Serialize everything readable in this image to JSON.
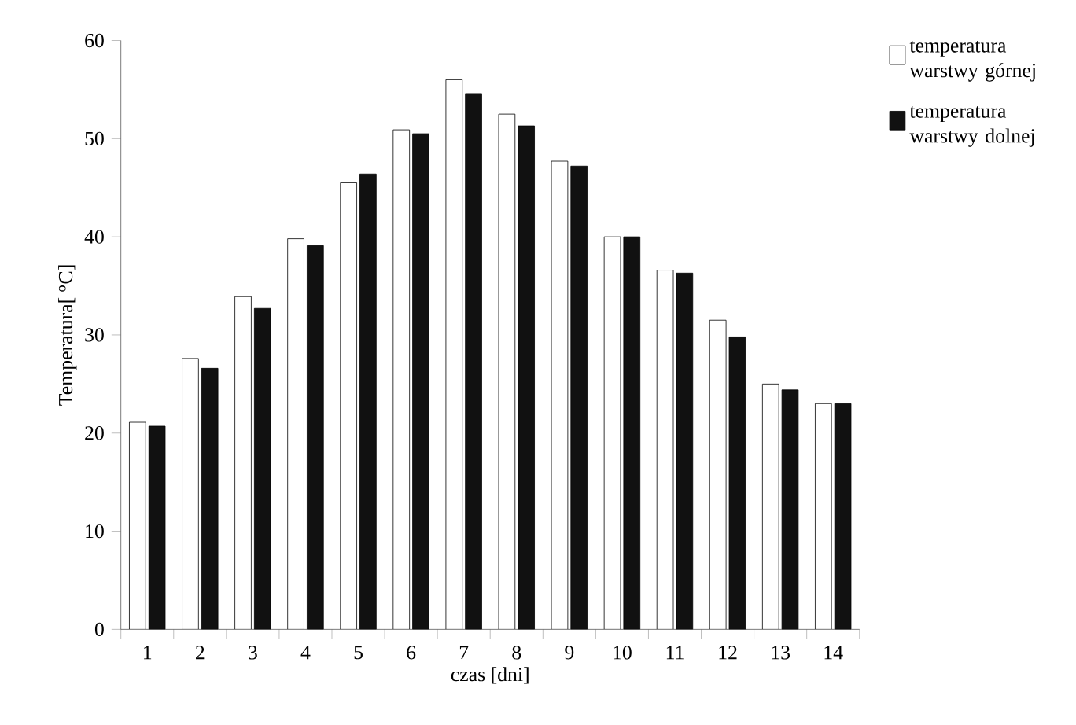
{
  "chart_data": {
    "type": "bar",
    "xlabel": "czas [dni]",
    "ylabel": "Temperatura[ $^{o}$C]",
    "categories": [
      "1",
      "2",
      "3",
      "4",
      "5",
      "6",
      "7",
      "8",
      "9",
      "10",
      "11",
      "12",
      "13",
      "14"
    ],
    "series": [
      {
        "name": "temperatura warstwy górnej",
        "color": "#ffffff",
        "values": [
          21.1,
          27.6,
          33.9,
          39.8,
          45.5,
          50.9,
          56.0,
          52.5,
          47.7,
          40.0,
          36.6,
          31.5,
          25.0,
          23.0
        ]
      },
      {
        "name": "temperatura warstwy dolnej",
        "color": "#111111",
        "values": [
          20.7,
          26.6,
          32.7,
          39.1,
          46.4,
          50.5,
          54.6,
          51.3,
          47.2,
          40.0,
          36.3,
          29.8,
          24.4,
          23.0
        ]
      }
    ],
    "ylim": [
      0,
      60
    ],
    "yticks": [
      0,
      10,
      20,
      30,
      40,
      50,
      60
    ],
    "legend": "top right"
  }
}
